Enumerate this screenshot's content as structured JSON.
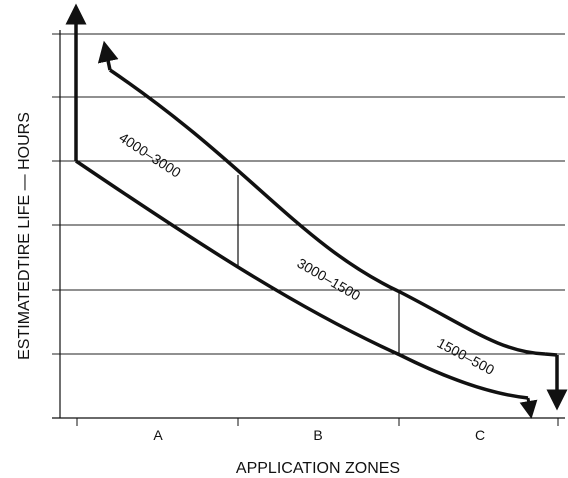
{
  "chart_data": {
    "type": "line",
    "title": "",
    "xlabel": "APPLICATION ZONES",
    "ylabel": "ESTIMATEDTIRE LIFE  — HOURS",
    "categories": [
      "A",
      "B",
      "C"
    ],
    "zone_bands": [
      {
        "zone": "A",
        "label": "4000–3000"
      },
      {
        "zone": "B",
        "label": "3000–1500"
      },
      {
        "zone": "C",
        "label": "1500–500"
      }
    ],
    "series": [
      {
        "x": [
          0,
          1,
          2,
          3
        ],
        "values": [
          5200,
          3000,
          1500,
          500
        ]
      },
      {
        "x": [
          0,
          1,
          2,
          3
        ],
        "values": [
          4000,
          1900,
          800,
          100
        ]
      }
    ],
    "xlim": [
      0,
      3
    ],
    "ylim": [
      0,
      6000
    ],
    "grid": true,
    "legend": "none"
  },
  "colors": {
    "line": "#111111",
    "grid": "#222222"
  }
}
